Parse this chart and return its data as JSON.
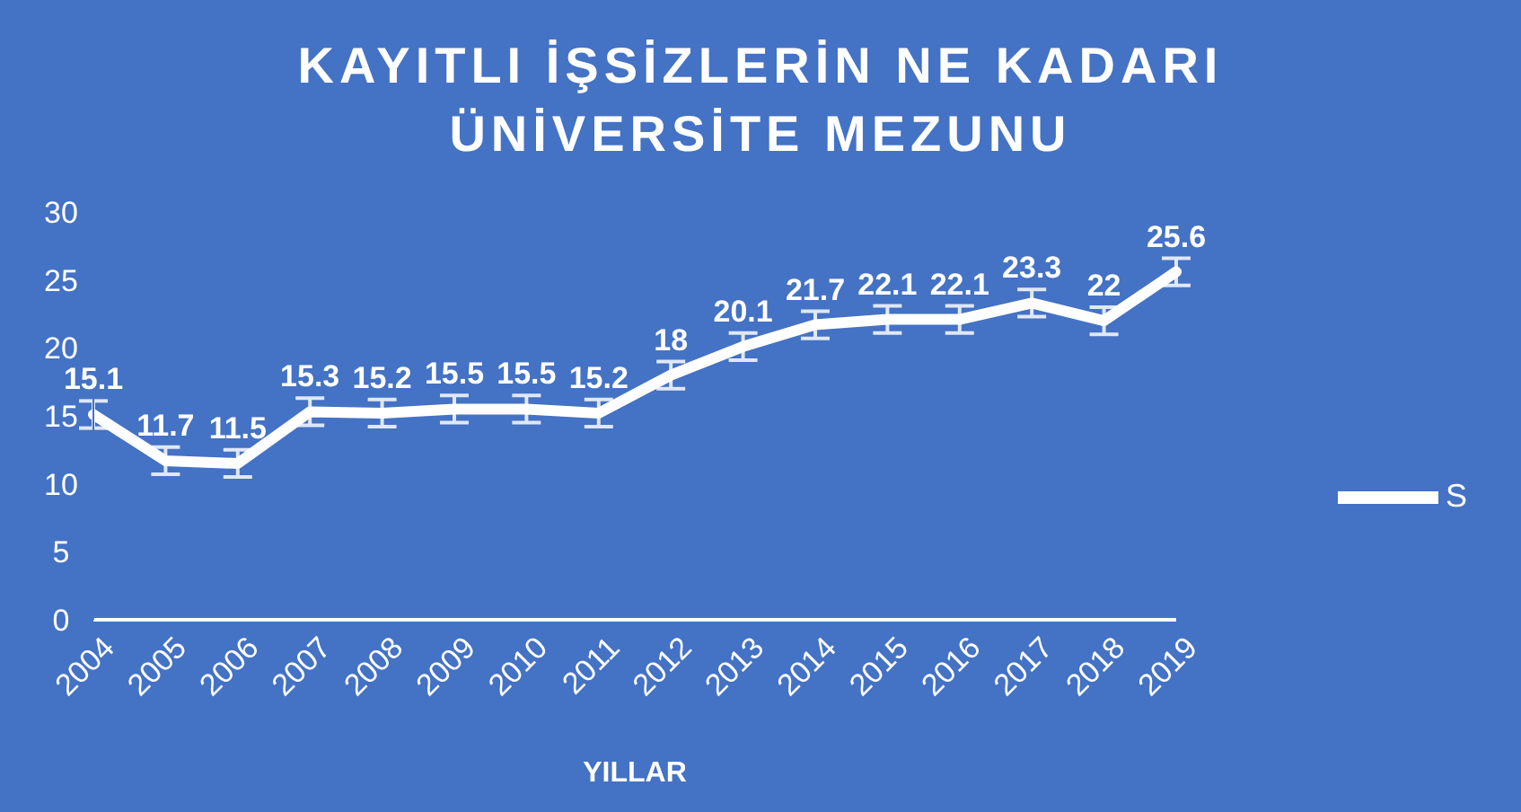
{
  "chart_data": {
    "type": "line",
    "title": "KAYITLI İŞSİZLERİN NE KADARI ÜNİVERSİTE MEZUNU",
    "xlabel": "YILLAR",
    "categories": [
      "2004",
      "2005",
      "2006",
      "2007",
      "2008",
      "2009",
      "2010",
      "2011",
      "2012",
      "2013",
      "2014",
      "2015",
      "2016",
      "2017",
      "2018",
      "2019"
    ],
    "series": [
      {
        "name": "S",
        "color": "#ffffff",
        "values": [
          15.1,
          11.7,
          11.5,
          15.3,
          15.2,
          15.5,
          15.5,
          15.2,
          18,
          20.1,
          21.7,
          22.1,
          22.1,
          23.3,
          22,
          25.6
        ],
        "errors": [
          1,
          1,
          1,
          1,
          1,
          1,
          1,
          1,
          1,
          1,
          1,
          1,
          1,
          1,
          1,
          1
        ]
      }
    ],
    "ylim": [
      0,
      30
    ],
    "yticks": [
      0,
      5,
      10,
      15,
      20,
      25,
      30
    ],
    "data_labels": true,
    "legend": "right",
    "grid": false,
    "marker": "none",
    "line_style": "solid"
  }
}
